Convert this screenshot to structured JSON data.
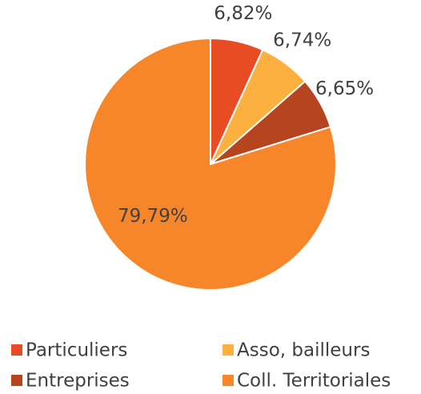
{
  "chart_data": {
    "type": "pie",
    "categories": [
      "Particuliers",
      "Asso, bailleurs",
      "Entreprises",
      "Coll. Territoriales"
    ],
    "values": [
      6.82,
      6.74,
      6.65,
      79.79
    ],
    "value_labels": [
      "6,82%",
      "6,74%",
      "6,65%",
      "79,79%"
    ],
    "colors": [
      "#e84c22",
      "#fbb040",
      "#b5441f",
      "#f7862a"
    ],
    "legend": "bottom"
  }
}
